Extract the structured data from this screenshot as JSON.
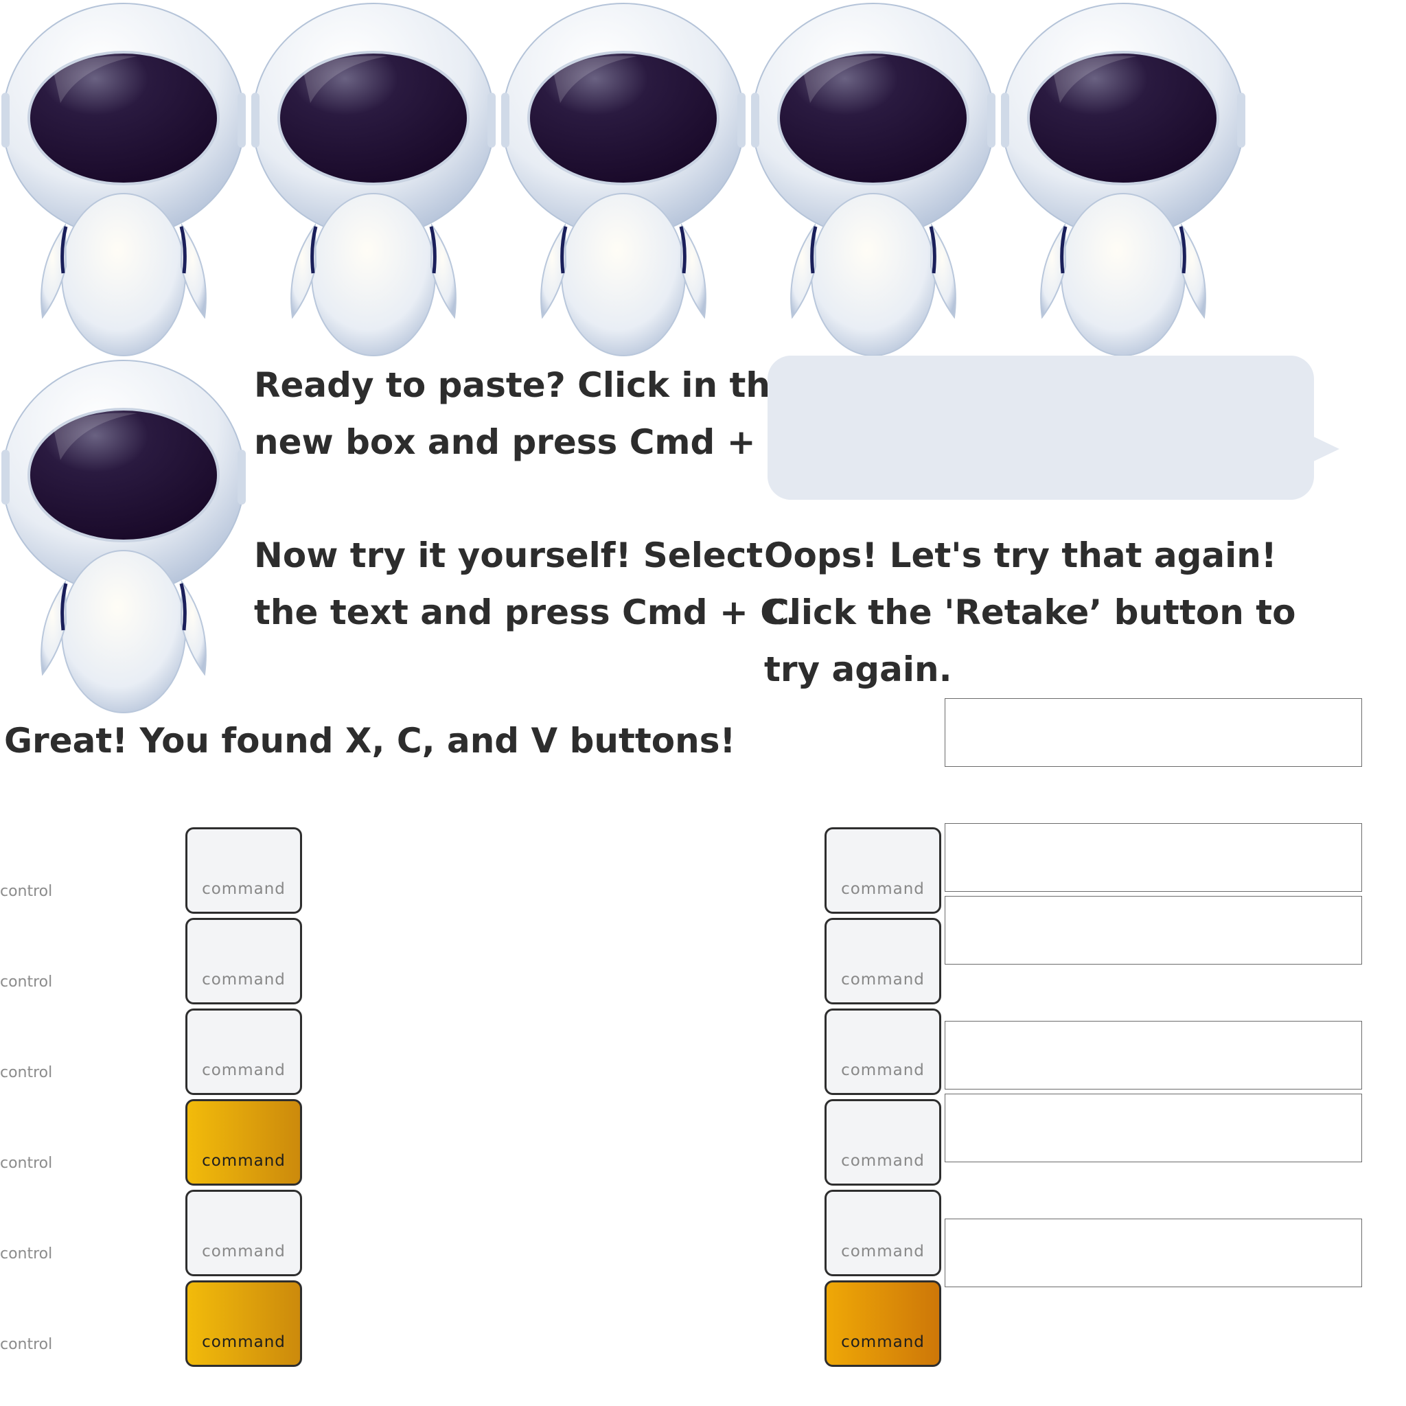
{
  "messages": {
    "paste_prompt": "Ready to paste? Click in the\nnew box and press Cmd + V.",
    "copy_prompt": "Now try it yourself! Select\nthe text and press Cmd + C.",
    "retry_prompt": "Oops! Let's try that again!\nClick the 'Retake’ button to\ntry again.",
    "success": "Great! You found X, C, and V buttons!"
  },
  "keys": {
    "control_label": "control",
    "command_label": "command"
  },
  "left_column": {
    "active_keys": [
      4,
      6
    ]
  },
  "right_column": {
    "active_keys": [
      6
    ]
  },
  "colors": {
    "key_active": "#e5a70b",
    "key_active_alt": "#e08c08",
    "bubble": "#e4e9f1",
    "text": "#2d2d2d",
    "visor": "#1c0c2c"
  }
}
